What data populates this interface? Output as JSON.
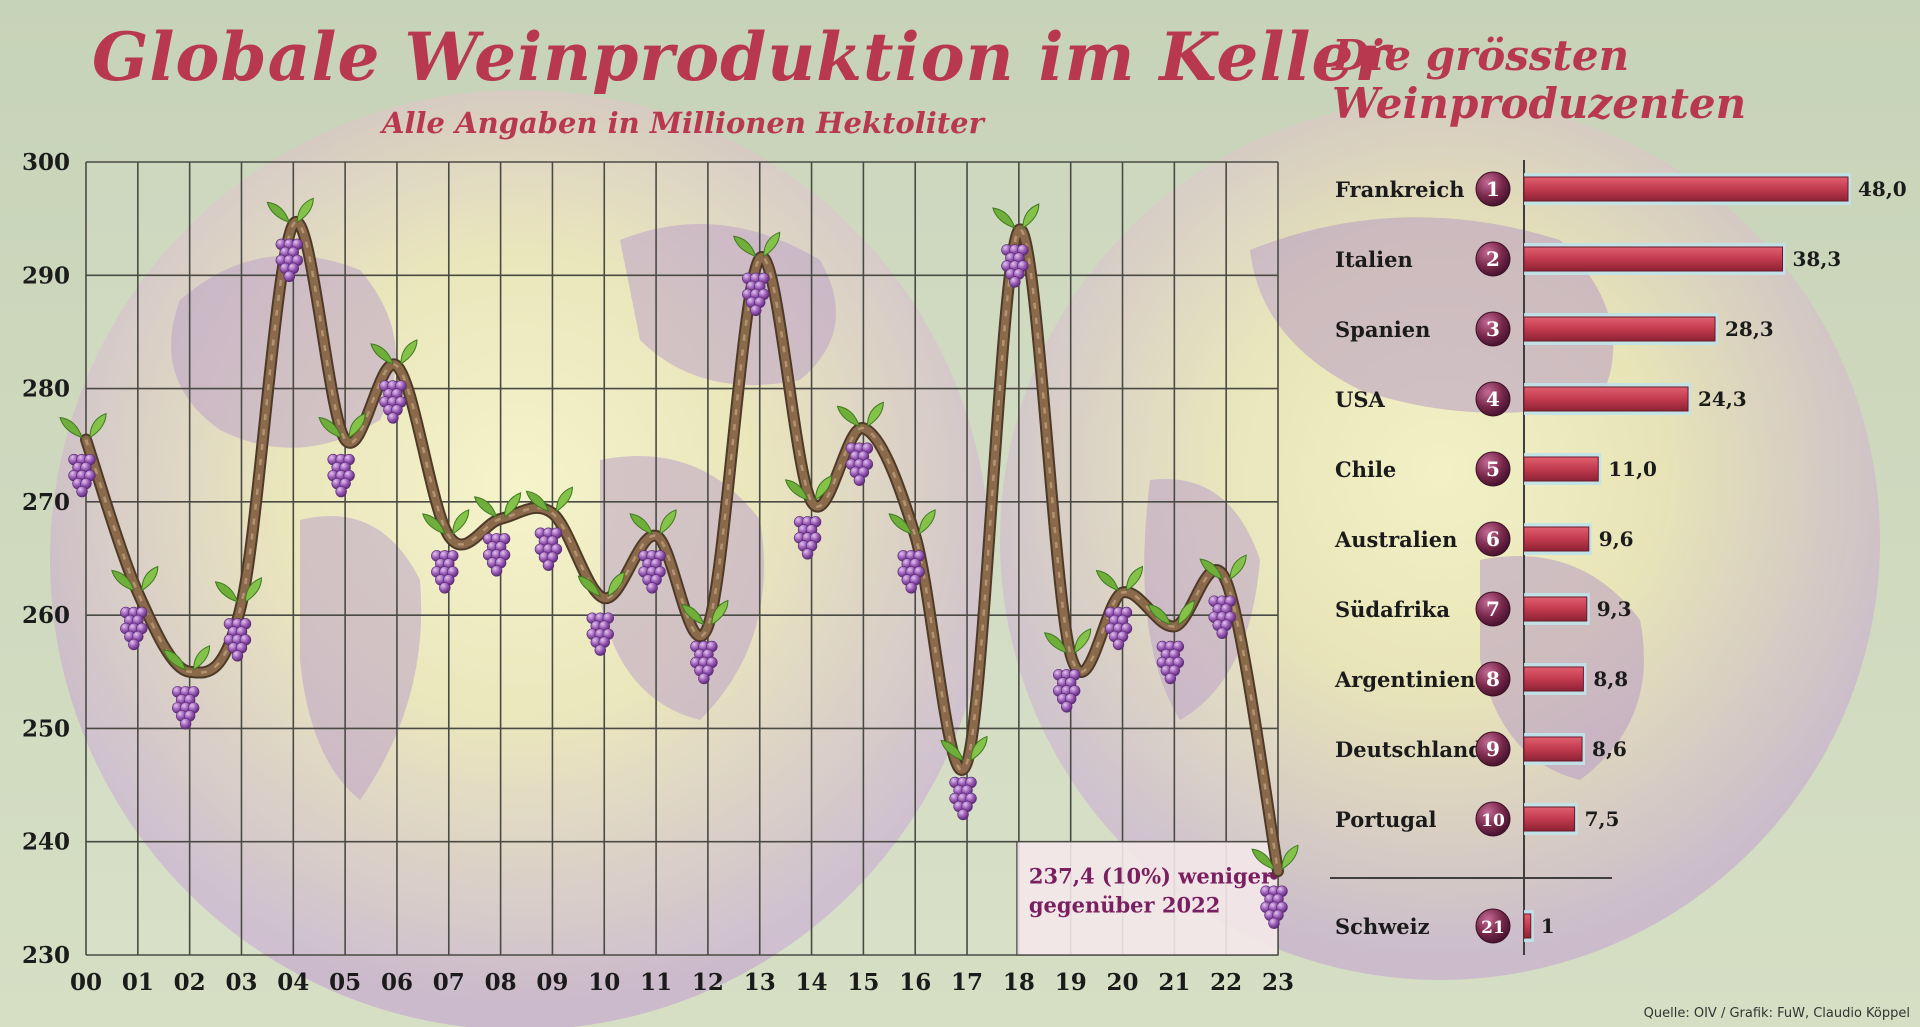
{
  "title": "Globale Weinproduktion im Keller",
  "subtitle": "Alle Angaben in Millionen Hektoliter",
  "right_title_line1": "Die grössten",
  "right_title_line2": "Weinproduzenten",
  "source": "Quelle: OIV / Grafik: FuW, Claudio Köppel",
  "colors": {
    "title": "#b8384f",
    "bar": "#c23a4e",
    "vine": "#8a6a4a",
    "grape": "#8e55a8",
    "badge": "#7a2a4c"
  },
  "chart_data": [
    {
      "type": "line",
      "x": [
        "00",
        "01",
        "02",
        "03",
        "04",
        "05",
        "06",
        "07",
        "08",
        "09",
        "10",
        "11",
        "12",
        "13",
        "14",
        "15",
        "16",
        "17",
        "18",
        "19",
        "20",
        "21",
        "22",
        "23"
      ],
      "values": [
        275.5,
        262,
        255,
        261,
        294.5,
        275.5,
        282,
        267,
        268.5,
        269,
        261.5,
        267,
        259,
        291.5,
        270,
        276.5,
        267,
        247,
        294,
        256.5,
        262,
        259,
        263,
        237.4
      ],
      "ylim": [
        230,
        300
      ],
      "yticks": [
        230,
        240,
        250,
        260,
        270,
        280,
        290,
        300
      ],
      "grid": true,
      "annotation_line1": "237,4 (10%) weniger",
      "annotation_line2": "gegenüber 2022"
    },
    {
      "type": "bar",
      "orientation": "horizontal",
      "categories": [
        "Frankreich",
        "Italien",
        "Spanien",
        "USA",
        "Chile",
        "Australien",
        "Südafrika",
        "Argentinien",
        "Deutschland",
        "Portugal"
      ],
      "ranks": [
        "1",
        "2",
        "3",
        "4",
        "5",
        "6",
        "7",
        "8",
        "9",
        "10"
      ],
      "values": [
        48.0,
        38.3,
        28.3,
        24.3,
        11.0,
        9.6,
        9.3,
        8.8,
        8.6,
        7.5
      ],
      "labels": [
        "48,0",
        "38,3",
        "28,3",
        "24,3",
        "11,0",
        "9,6",
        "9,3",
        "8,8",
        "8,6",
        "7,5"
      ],
      "extra": {
        "category": "Schweiz",
        "rank": "21",
        "value": 1,
        "label": "1"
      }
    }
  ]
}
